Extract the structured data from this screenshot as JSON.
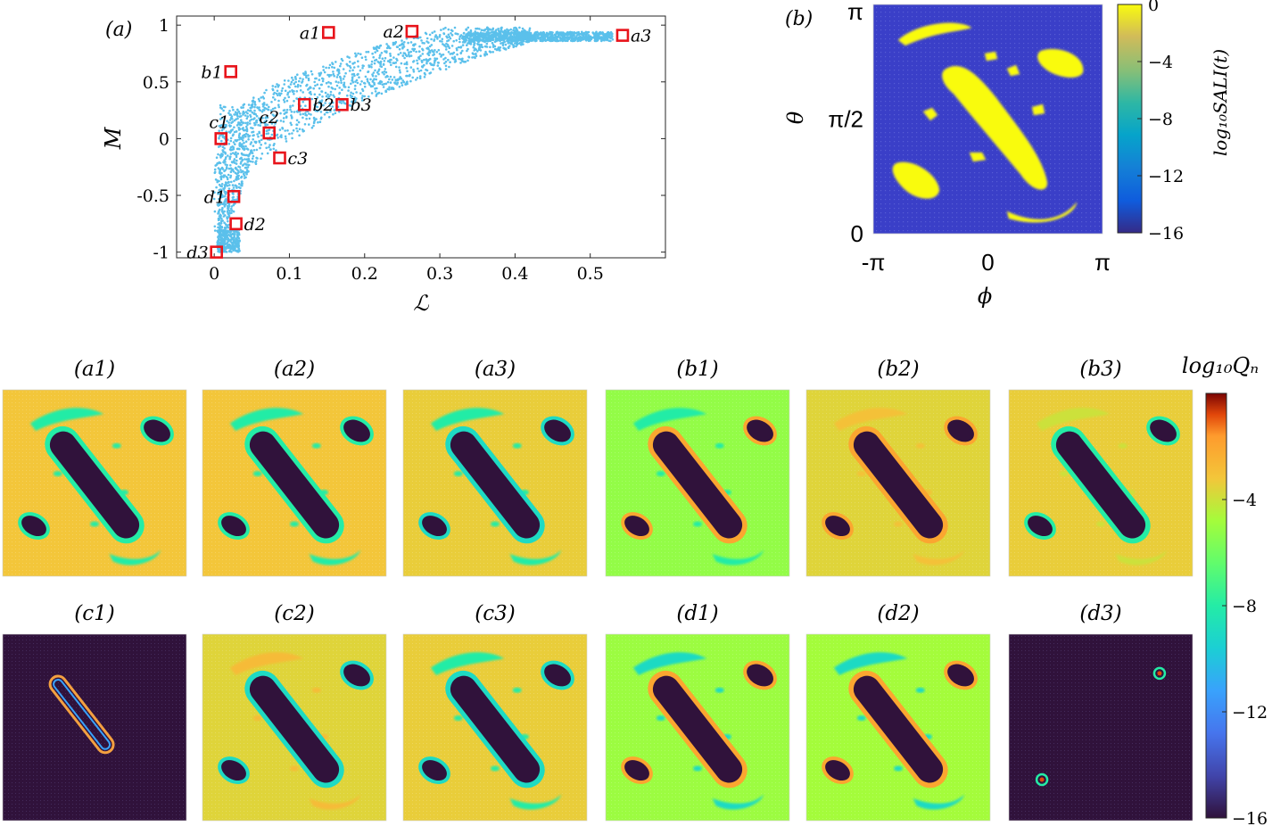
{
  "chart_data": [
    {
      "type": "scatter",
      "panel_label": "(a)",
      "xlabel": "ℒ",
      "ylabel": "M",
      "xlim": [
        -0.05,
        0.6
      ],
      "ylim": [
        -1.05,
        1.08
      ],
      "xticks": [
        0,
        0.1,
        0.2,
        0.3,
        0.4,
        0.5
      ],
      "xtick_labels": [
        "0",
        "0.1",
        "0.2",
        "0.3",
        "0.4",
        "0.5"
      ],
      "yticks": [
        -1,
        -0.5,
        0,
        0.5,
        1
      ],
      "ytick_labels": [
        "-1",
        "-0.5",
        "0",
        "0.5",
        "1"
      ],
      "series_color": "#5bc0eb",
      "marker_color": "#e8141b",
      "highlighted_points": [
        {
          "label": "a1",
          "x": 0.152,
          "y": 0.935,
          "label_side": "left"
        },
        {
          "label": "a2",
          "x": 0.263,
          "y": 0.945,
          "label_side": "left"
        },
        {
          "label": "a3",
          "x": 0.543,
          "y": 0.91,
          "label_side": "right"
        },
        {
          "label": "b1",
          "x": 0.022,
          "y": 0.59,
          "label_side": "left"
        },
        {
          "label": "b2",
          "x": 0.12,
          "y": 0.3,
          "label_side": "right"
        },
        {
          "label": "b3",
          "x": 0.17,
          "y": 0.3,
          "label_side": "right"
        },
        {
          "label": "c1",
          "x": 0.009,
          "y": 0.0,
          "label_side": "above-left"
        },
        {
          "label": "c2",
          "x": 0.073,
          "y": 0.05,
          "label_side": "above"
        },
        {
          "label": "c3",
          "x": 0.087,
          "y": -0.17,
          "label_side": "right"
        },
        {
          "label": "d1",
          "x": 0.026,
          "y": -0.51,
          "label_side": "left"
        },
        {
          "label": "d2",
          "x": 0.029,
          "y": -0.75,
          "label_side": "right"
        },
        {
          "label": "d3",
          "x": 0.003,
          "y": -1.0,
          "label_side": "left"
        }
      ]
    },
    {
      "type": "heatmap",
      "panel_label": "(b)",
      "xlabel": "ϕ",
      "ylabel": "θ",
      "xtick_labels": [
        "-π",
        "0",
        "π"
      ],
      "ytick_labels": [
        "0",
        "π/2",
        "π"
      ],
      "colorbar_label": "log₁₀SALI(t)",
      "colorbar_ticks": [
        0,
        -4,
        -8,
        -12,
        -16
      ],
      "colorbar_tick_labels": [
        "0",
        "−4",
        "−8",
        "−12",
        "−16"
      ],
      "clim": [
        -16,
        0
      ],
      "background_value": -16,
      "island_value": -1
    },
    {
      "type": "heatmap",
      "grid": "2x6",
      "titles": [
        "(a1)",
        "(a2)",
        "(a3)",
        "(b1)",
        "(b2)",
        "(b3)",
        "(c1)",
        "(c2)",
        "(c3)",
        "(d1)",
        "(d2)",
        "(d3)"
      ],
      "colorbar_label": "log₁₀Qₙ",
      "colorbar_ticks": [
        -4,
        -8,
        -12,
        -16
      ],
      "colorbar_tick_labels": [
        "−4",
        "−8",
        "−12",
        "−16"
      ],
      "clim": [
        -16,
        0
      ],
      "panels": [
        {
          "name": "a1",
          "background": -3.2,
          "island": -16,
          "ring": -8,
          "arcs": -8,
          "variant": "full"
        },
        {
          "name": "a2",
          "background": -3.2,
          "island": -16,
          "ring": -8,
          "arcs": -8,
          "variant": "full"
        },
        {
          "name": "a3",
          "background": -3.4,
          "island": -16,
          "ring": -9,
          "arcs": -8,
          "variant": "full"
        },
        {
          "name": "b1",
          "background": -5.2,
          "island": -16,
          "ring": -2,
          "arcs": -8,
          "variant": "full"
        },
        {
          "name": "b2",
          "background": -3.6,
          "island": -16,
          "ring": -2,
          "arcs": -3,
          "variant": "full"
        },
        {
          "name": "b3",
          "background": -3.4,
          "island": -16,
          "ring": -8,
          "arcs": -4,
          "variant": "full"
        },
        {
          "name": "c1",
          "background": -16,
          "island": -16,
          "ring": -5,
          "arcs": -16,
          "variant": "c1"
        },
        {
          "name": "c2",
          "background": -3.6,
          "island": -16,
          "ring": -9,
          "arcs": -2.8,
          "variant": "full"
        },
        {
          "name": "c3",
          "background": -3.4,
          "island": -16,
          "ring": -9,
          "arcs": -8,
          "variant": "full"
        },
        {
          "name": "d1",
          "background": -5.0,
          "island": -16,
          "ring": -2,
          "arcs": -9,
          "variant": "full"
        },
        {
          "name": "d2",
          "background": -4.8,
          "island": -16,
          "ring": -2,
          "arcs": -9,
          "variant": "full"
        },
        {
          "name": "d3",
          "background": -16,
          "island": -16,
          "ring": -5,
          "arcs": -16,
          "variant": "d3"
        }
      ]
    }
  ]
}
